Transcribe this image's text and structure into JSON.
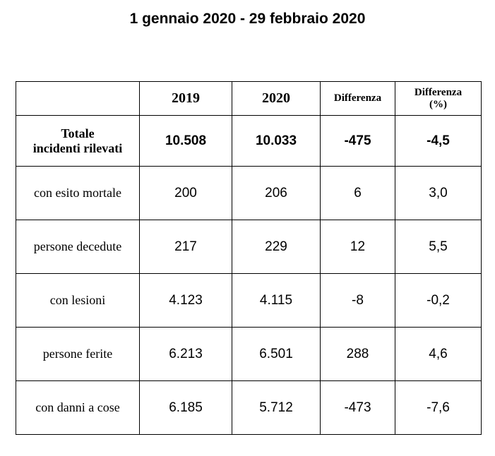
{
  "title": "1 gennaio 2020 - 29 febbraio 2020",
  "table": {
    "headers": {
      "year_2019": "2019",
      "year_2020": "2020",
      "difference": "Differenza",
      "difference_pct_line1": "Differenza",
      "difference_pct_line2": "(%)"
    },
    "total": {
      "label_line1": "Totale",
      "label_line2": "incidenti rilevati",
      "v2019": "10.508",
      "v2020": "10.033",
      "diff": "-475",
      "pct": "-4,5"
    },
    "rows": [
      {
        "label": "con esito mortale",
        "v2019": "200",
        "v2020": "206",
        "diff": "6",
        "pct": "3,0"
      },
      {
        "label": "persone decedute",
        "v2019": "217",
        "v2020": "229",
        "diff": "12",
        "pct": "5,5"
      },
      {
        "label": "con lesioni",
        "v2019": "4.123",
        "v2020": "4.115",
        "diff": "-8",
        "pct": "-0,2"
      },
      {
        "label": "persone ferite",
        "v2019": "6.213",
        "v2020": "6.501",
        "diff": "288",
        "pct": "4,6"
      },
      {
        "label": "con danni a cose",
        "v2019": "6.185",
        "v2020": "5.712",
        "diff": "-473",
        "pct": "-7,6"
      }
    ]
  }
}
